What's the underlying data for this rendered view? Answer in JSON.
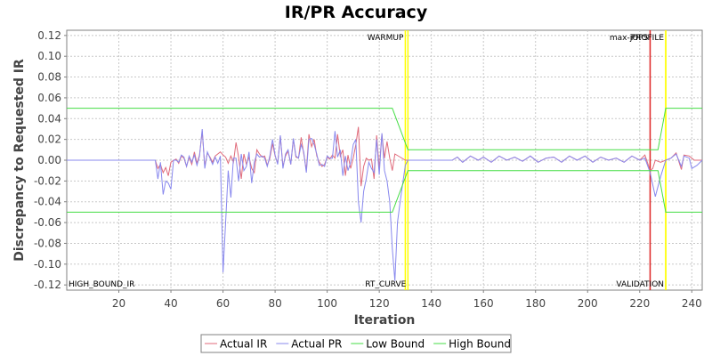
{
  "chart_data": {
    "type": "line",
    "title": "IR/PR Accuracy",
    "xlabel": "Iteration",
    "ylabel": "Discrepancy to Requested IR",
    "xlim": [
      0,
      244
    ],
    "ylim": [
      -0.125,
      0.125
    ],
    "x_ticks": [
      20,
      40,
      60,
      80,
      100,
      120,
      140,
      160,
      180,
      200,
      220,
      240
    ],
    "y_ticks": [
      -0.12,
      -0.1,
      -0.08,
      -0.06,
      -0.04,
      -0.02,
      0.0,
      0.02,
      0.04,
      0.06,
      0.08,
      0.1,
      0.12
    ],
    "y_tick_labels": [
      "-0.12",
      "-0.10",
      "-0.08",
      "-0.06",
      "-0.04",
      "-0.02",
      "0.00",
      "0.02",
      "0.04",
      "0.06",
      "0.08",
      "0.10",
      "0.12"
    ],
    "grid": true,
    "legend_position": "bottom",
    "markers": [
      {
        "label": "WARMUP",
        "x": 130,
        "color": "#ffff00",
        "label_pos": "top"
      },
      {
        "label": "RT_CURVE",
        "x": 131,
        "color": "#ffff00",
        "label_pos": "bottom"
      },
      {
        "label": "max-jOPS",
        "x": 224,
        "color": "#dd2222",
        "label_pos": "top"
      },
      {
        "label": "PROFILE",
        "x": 230,
        "color": "#ffff00",
        "label_pos": "top"
      },
      {
        "label": "VALIDATION",
        "x": 230,
        "color": "#ffff00",
        "label_pos": "bottom"
      },
      {
        "label": "HIGH_BOUND_IR",
        "x": 0,
        "color": "none",
        "label_pos": "bottom-left"
      }
    ],
    "series": [
      {
        "name": "Actual IR",
        "color": "#e06a7a",
        "points": [
          [
            0,
            0
          ],
          [
            34,
            0
          ],
          [
            35,
            -0.008
          ],
          [
            36,
            -0.004
          ],
          [
            37,
            -0.012
          ],
          [
            38,
            -0.007
          ],
          [
            39,
            -0.015
          ],
          [
            40,
            -0.002
          ],
          [
            41,
            0
          ],
          [
            42,
            0.001
          ],
          [
            43,
            -0.003
          ],
          [
            44,
            0.004
          ],
          [
            45,
            0.002
          ],
          [
            46,
            -0.006
          ],
          [
            47,
            0.003
          ],
          [
            48,
            -0.004
          ],
          [
            49,
            0.008
          ],
          [
            50,
            -0.003
          ],
          [
            51,
            0.005
          ],
          [
            52,
            0.028
          ],
          [
            53,
            -0.006
          ],
          [
            54,
            0.007
          ],
          [
            55,
            0.003
          ],
          [
            56,
            -0.002
          ],
          [
            57,
            0.004
          ],
          [
            58,
            0.006
          ],
          [
            59,
            0.008
          ],
          [
            60,
            0.005
          ],
          [
            61,
            0.003
          ],
          [
            62,
            -0.003
          ],
          [
            63,
            0.004
          ],
          [
            64,
            -0.002
          ],
          [
            65,
            0.017
          ],
          [
            66,
            0.003
          ],
          [
            67,
            -0.018
          ],
          [
            68,
            0.006
          ],
          [
            69,
            -0.004
          ],
          [
            70,
            0.003
          ],
          [
            71,
            -0.008
          ],
          [
            72,
            -0.012
          ],
          [
            73,
            0.01
          ],
          [
            74,
            0.006
          ],
          [
            75,
            0.003
          ],
          [
            76,
            0.004
          ],
          [
            77,
            -0.005
          ],
          [
            78,
            0.002
          ],
          [
            79,
            0.016
          ],
          [
            80,
            0.004
          ],
          [
            81,
            -0.003
          ],
          [
            82,
            0.023
          ],
          [
            83,
            -0.006
          ],
          [
            84,
            0.004
          ],
          [
            85,
            0.009
          ],
          [
            86,
            -0.004
          ],
          [
            87,
            0.02
          ],
          [
            88,
            0.003
          ],
          [
            89,
            0.002
          ],
          [
            90,
            0.022
          ],
          [
            91,
            0.006
          ],
          [
            92,
            -0.01
          ],
          [
            93,
            0.025
          ],
          [
            94,
            0.013
          ],
          [
            95,
            0.02
          ],
          [
            96,
            0.004
          ],
          [
            97,
            -0.002
          ],
          [
            98,
            -0.006
          ],
          [
            99,
            -0.004
          ],
          [
            100,
            0.003
          ],
          [
            101,
            0.001
          ],
          [
            102,
            0.005
          ],
          [
            103,
            0.002
          ],
          [
            104,
            0.025
          ],
          [
            105,
            0.004
          ],
          [
            106,
            0.01
          ],
          [
            107,
            -0.015
          ],
          [
            108,
            0.005
          ],
          [
            109,
            -0.008
          ],
          [
            110,
            0.002
          ],
          [
            111,
            0.015
          ],
          [
            112,
            0.032
          ],
          [
            113,
            -0.025
          ],
          [
            114,
            -0.006
          ],
          [
            115,
            0.002
          ],
          [
            116,
            0
          ],
          [
            117,
            0.001
          ],
          [
            118,
            -0.018
          ],
          [
            119,
            0.024
          ],
          [
            120,
            -0.008
          ],
          [
            121,
            0.025
          ],
          [
            122,
            0.002
          ],
          [
            123,
            0.018
          ],
          [
            124,
            0.002
          ],
          [
            125,
            -0.01
          ],
          [
            126,
            0.006
          ],
          [
            128,
            0.003
          ],
          [
            130,
            0
          ],
          [
            131,
            0
          ],
          [
            135,
            0
          ],
          [
            140,
            0
          ],
          [
            148,
            0
          ],
          [
            150,
            0.003
          ],
          [
            152,
            -0.002
          ],
          [
            155,
            0.004
          ],
          [
            158,
            0
          ],
          [
            160,
            0.003
          ],
          [
            163,
            -0.002
          ],
          [
            166,
            0.004
          ],
          [
            169,
            0
          ],
          [
            172,
            0.003
          ],
          [
            175,
            -0.001
          ],
          [
            178,
            0.004
          ],
          [
            181,
            -0.002
          ],
          [
            184,
            0.002
          ],
          [
            187,
            0.003
          ],
          [
            190,
            -0.002
          ],
          [
            193,
            0.004
          ],
          [
            196,
            0
          ],
          [
            199,
            0.004
          ],
          [
            202,
            -0.002
          ],
          [
            205,
            0.003
          ],
          [
            208,
            0
          ],
          [
            211,
            0.002
          ],
          [
            214,
            -0.002
          ],
          [
            217,
            0.004
          ],
          [
            220,
            0
          ],
          [
            222,
            0.005
          ],
          [
            224,
            -0.01
          ],
          [
            225,
            -0.008
          ],
          [
            226,
            0
          ],
          [
            228,
            -0.002
          ],
          [
            230,
            0
          ],
          [
            232,
            0.002
          ],
          [
            234,
            0.007
          ],
          [
            236,
            -0.009
          ],
          [
            237,
            0.005
          ],
          [
            239,
            0.004
          ],
          [
            241,
            0
          ],
          [
            244,
            0
          ]
        ]
      },
      {
        "name": "Actual PR",
        "color": "#8888ee",
        "points": [
          [
            0,
            0
          ],
          [
            34,
            0
          ],
          [
            35,
            -0.018
          ],
          [
            36,
            -0.002
          ],
          [
            37,
            -0.033
          ],
          [
            38,
            -0.02
          ],
          [
            39,
            -0.022
          ],
          [
            40,
            -0.028
          ],
          [
            41,
            0
          ],
          [
            42,
            0
          ],
          [
            43,
            -0.002
          ],
          [
            44,
            0.005
          ],
          [
            45,
            0.003
          ],
          [
            46,
            -0.006
          ],
          [
            47,
            0.004
          ],
          [
            48,
            -0.002
          ],
          [
            49,
            0.005
          ],
          [
            50,
            -0.005
          ],
          [
            51,
            0.004
          ],
          [
            52,
            0.03
          ],
          [
            53,
            -0.008
          ],
          [
            54,
            0.008
          ],
          [
            55,
            0.002
          ],
          [
            56,
            -0.004
          ],
          [
            57,
            0.003
          ],
          [
            58,
            -0.003
          ],
          [
            59,
            0.004
          ],
          [
            60,
            -0.108
          ],
          [
            61,
            -0.06
          ],
          [
            62,
            -0.01
          ],
          [
            63,
            -0.036
          ],
          [
            64,
            0.002
          ],
          [
            65,
            0.002
          ],
          [
            66,
            -0.02
          ],
          [
            67,
            0.006
          ],
          [
            68,
            -0.01
          ],
          [
            69,
            -0.006
          ],
          [
            70,
            0.008
          ],
          [
            71,
            -0.022
          ],
          [
            72,
            -0.002
          ],
          [
            73,
            0.006
          ],
          [
            74,
            0.003
          ],
          [
            75,
            0.004
          ],
          [
            76,
            0.002
          ],
          [
            77,
            -0.006
          ],
          [
            78,
            0.004
          ],
          [
            79,
            0.02
          ],
          [
            80,
            0.005
          ],
          [
            81,
            -0.004
          ],
          [
            82,
            0.024
          ],
          [
            83,
            -0.008
          ],
          [
            84,
            0.006
          ],
          [
            85,
            0.01
          ],
          [
            86,
            -0.004
          ],
          [
            87,
            0.021
          ],
          [
            88,
            0.004
          ],
          [
            89,
            0.002
          ],
          [
            90,
            0.015
          ],
          [
            91,
            0.008
          ],
          [
            92,
            -0.012
          ],
          [
            93,
            0.02
          ],
          [
            94,
            0.021
          ],
          [
            95,
            0.015
          ],
          [
            96,
            0.006
          ],
          [
            97,
            -0.005
          ],
          [
            98,
            -0.004
          ],
          [
            99,
            -0.006
          ],
          [
            100,
            0.004
          ],
          [
            101,
            0.002
          ],
          [
            102,
            0.002
          ],
          [
            103,
            0.028
          ],
          [
            104,
            0.003
          ],
          [
            105,
            0.01
          ],
          [
            106,
            -0.015
          ],
          [
            107,
            0.004
          ],
          [
            108,
            -0.01
          ],
          [
            109,
            -0.002
          ],
          [
            110,
            0.015
          ],
          [
            111,
            0.02
          ],
          [
            112,
            -0.04
          ],
          [
            113,
            -0.06
          ],
          [
            114,
            -0.03
          ],
          [
            115,
            -0.018
          ],
          [
            116,
            -0.002
          ],
          [
            117,
            -0.008
          ],
          [
            118,
            -0.012
          ],
          [
            119,
            0.02
          ],
          [
            120,
            -0.014
          ],
          [
            121,
            0.026
          ],
          [
            122,
            -0.01
          ],
          [
            123,
            -0.02
          ],
          [
            124,
            -0.04
          ],
          [
            125,
            -0.085
          ],
          [
            126,
            -0.116
          ],
          [
            127,
            -0.06
          ],
          [
            128,
            -0.04
          ],
          [
            130,
            -0.005
          ],
          [
            131,
            0
          ],
          [
            135,
            0
          ],
          [
            140,
            0
          ],
          [
            148,
            0
          ],
          [
            150,
            0.003
          ],
          [
            152,
            -0.002
          ],
          [
            155,
            0.004
          ],
          [
            158,
            0
          ],
          [
            160,
            0.003
          ],
          [
            163,
            -0.002
          ],
          [
            166,
            0.004
          ],
          [
            169,
            0
          ],
          [
            172,
            0.003
          ],
          [
            175,
            -0.001
          ],
          [
            178,
            0.004
          ],
          [
            181,
            -0.002
          ],
          [
            184,
            0.002
          ],
          [
            187,
            0.003
          ],
          [
            190,
            -0.002
          ],
          [
            193,
            0.004
          ],
          [
            196,
            0
          ],
          [
            199,
            0.004
          ],
          [
            202,
            -0.002
          ],
          [
            205,
            0.003
          ],
          [
            208,
            0
          ],
          [
            211,
            0.002
          ],
          [
            214,
            -0.002
          ],
          [
            217,
            0.004
          ],
          [
            220,
            0
          ],
          [
            222,
            0.002
          ],
          [
            224,
            -0.012
          ],
          [
            226,
            -0.035
          ],
          [
            228,
            -0.016
          ],
          [
            230,
            0
          ],
          [
            232,
            0.002
          ],
          [
            234,
            0.006
          ],
          [
            236,
            -0.006
          ],
          [
            237,
            0.004
          ],
          [
            239,
            0.002
          ],
          [
            240,
            -0.008
          ],
          [
            242,
            -0.005
          ],
          [
            244,
            0
          ]
        ]
      },
      {
        "name": "Low Bound",
        "color": "#44dd44",
        "points": [
          [
            0,
            -0.05
          ],
          [
            125,
            -0.05
          ],
          [
            131,
            -0.01
          ],
          [
            224,
            -0.01
          ],
          [
            227,
            -0.01
          ],
          [
            230,
            -0.05
          ],
          [
            244,
            -0.05
          ]
        ]
      },
      {
        "name": "High Bound",
        "color": "#44dd44",
        "points": [
          [
            0,
            0.05
          ],
          [
            125,
            0.05
          ],
          [
            131,
            0.01
          ],
          [
            224,
            0.01
          ],
          [
            227,
            0.01
          ],
          [
            230,
            0.05
          ],
          [
            244,
            0.05
          ]
        ]
      }
    ]
  }
}
